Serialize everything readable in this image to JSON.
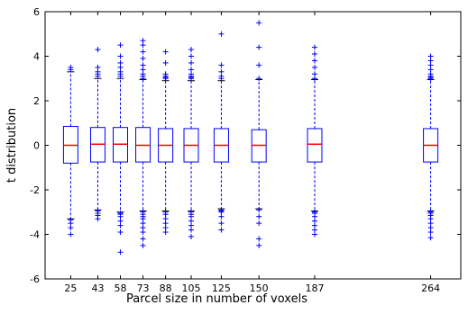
{
  "chart_data": {
    "type": "box",
    "title": "",
    "xlabel": "Parcel size in number of voxels",
    "ylabel": "t distribution",
    "ylim": [
      -6,
      6
    ],
    "yticks": [
      -6,
      -4,
      -2,
      0,
      2,
      4,
      6
    ],
    "x_positions": [
      25,
      43,
      58,
      73,
      88,
      105,
      125,
      150,
      187,
      264
    ],
    "x_tick_labels": [
      "25",
      "43",
      "58",
      "73",
      "88",
      "105",
      "125",
      "150",
      "187",
      "264"
    ],
    "colors": {
      "box": "#0000ff",
      "median": "#ff0000",
      "outlier": "#0000ff",
      "frame": "#000000"
    },
    "boxes": [
      {
        "x": 25,
        "q1": -0.8,
        "median": 0.0,
        "q3": 0.85,
        "whisker_low": -3.3,
        "whisker_high": 3.3,
        "outliers": [
          3.5,
          3.4,
          -3.35,
          -3.5,
          -3.7,
          -4.0
        ]
      },
      {
        "x": 43,
        "q1": -0.75,
        "median": 0.05,
        "q3": 0.8,
        "whisker_low": -2.9,
        "whisker_high": 3.0,
        "outliers": [
          3.1,
          3.2,
          3.3,
          3.5,
          4.3,
          -2.95,
          -3.05,
          -3.15,
          -3.3
        ]
      },
      {
        "x": 58,
        "q1": -0.75,
        "median": 0.05,
        "q3": 0.8,
        "whisker_low": -3.0,
        "whisker_high": 3.0,
        "outliers": [
          3.1,
          3.2,
          3.3,
          3.5,
          3.7,
          4.0,
          4.5,
          -3.05,
          -3.1,
          -3.2,
          -3.4,
          -3.6,
          -3.9,
          -4.8
        ]
      },
      {
        "x": 73,
        "q1": -0.75,
        "median": 0.0,
        "q3": 0.8,
        "whisker_low": -2.95,
        "whisker_high": 2.95,
        "outliers": [
          3.0,
          3.1,
          3.2,
          3.4,
          3.6,
          3.9,
          4.2,
          4.5,
          4.7,
          -3.0,
          -3.1,
          -3.2,
          -3.3,
          -3.5,
          -3.7,
          -3.9,
          -4.2,
          -4.5
        ]
      },
      {
        "x": 88,
        "q1": -0.75,
        "median": 0.0,
        "q3": 0.75,
        "whisker_low": -2.95,
        "whisker_high": 2.9,
        "outliers": [
          3.0,
          3.05,
          3.1,
          3.2,
          3.7,
          4.2,
          -3.0,
          -3.1,
          -3.3,
          -3.5,
          -3.7,
          -3.9
        ]
      },
      {
        "x": 105,
        "q1": -0.75,
        "median": 0.0,
        "q3": 0.75,
        "whisker_low": -2.95,
        "whisker_high": 2.9,
        "outliers": [
          3.0,
          3.05,
          3.1,
          3.2,
          3.4,
          3.7,
          4.0,
          4.3,
          -3.0,
          -3.1,
          -3.2,
          -3.4,
          -3.6,
          -3.8,
          -4.1
        ]
      },
      {
        "x": 125,
        "q1": -0.75,
        "median": 0.0,
        "q3": 0.75,
        "whisker_low": -2.85,
        "whisker_high": 2.9,
        "outliers": [
          3.0,
          3.1,
          3.3,
          3.6,
          5.0,
          -2.9,
          -2.95,
          -3.0,
          -3.2,
          -3.5,
          -3.8
        ]
      },
      {
        "x": 150,
        "q1": -0.75,
        "median": 0.0,
        "q3": 0.7,
        "whisker_low": -2.85,
        "whisker_high": 2.95,
        "outliers": [
          3.0,
          3.6,
          4.4,
          5.5,
          -2.9,
          -3.2,
          -3.5,
          -4.2,
          -4.5
        ]
      },
      {
        "x": 187,
        "q1": -0.75,
        "median": 0.05,
        "q3": 0.75,
        "whisker_low": -2.95,
        "whisker_high": 2.95,
        "outliers": [
          3.0,
          3.2,
          3.5,
          3.8,
          4.1,
          4.4,
          -3.0,
          -3.05,
          -3.2,
          -3.4,
          -3.6,
          -3.8,
          -4.0
        ]
      },
      {
        "x": 264,
        "q1": -0.75,
        "median": 0.0,
        "q3": 0.75,
        "whisker_low": -2.95,
        "whisker_high": 2.95,
        "outliers": [
          3.0,
          3.05,
          3.1,
          3.2,
          3.4,
          3.6,
          3.8,
          4.0,
          -3.0,
          -3.05,
          -3.15,
          -3.3,
          -3.5,
          -3.7,
          -3.9,
          -4.15
        ]
      }
    ]
  }
}
